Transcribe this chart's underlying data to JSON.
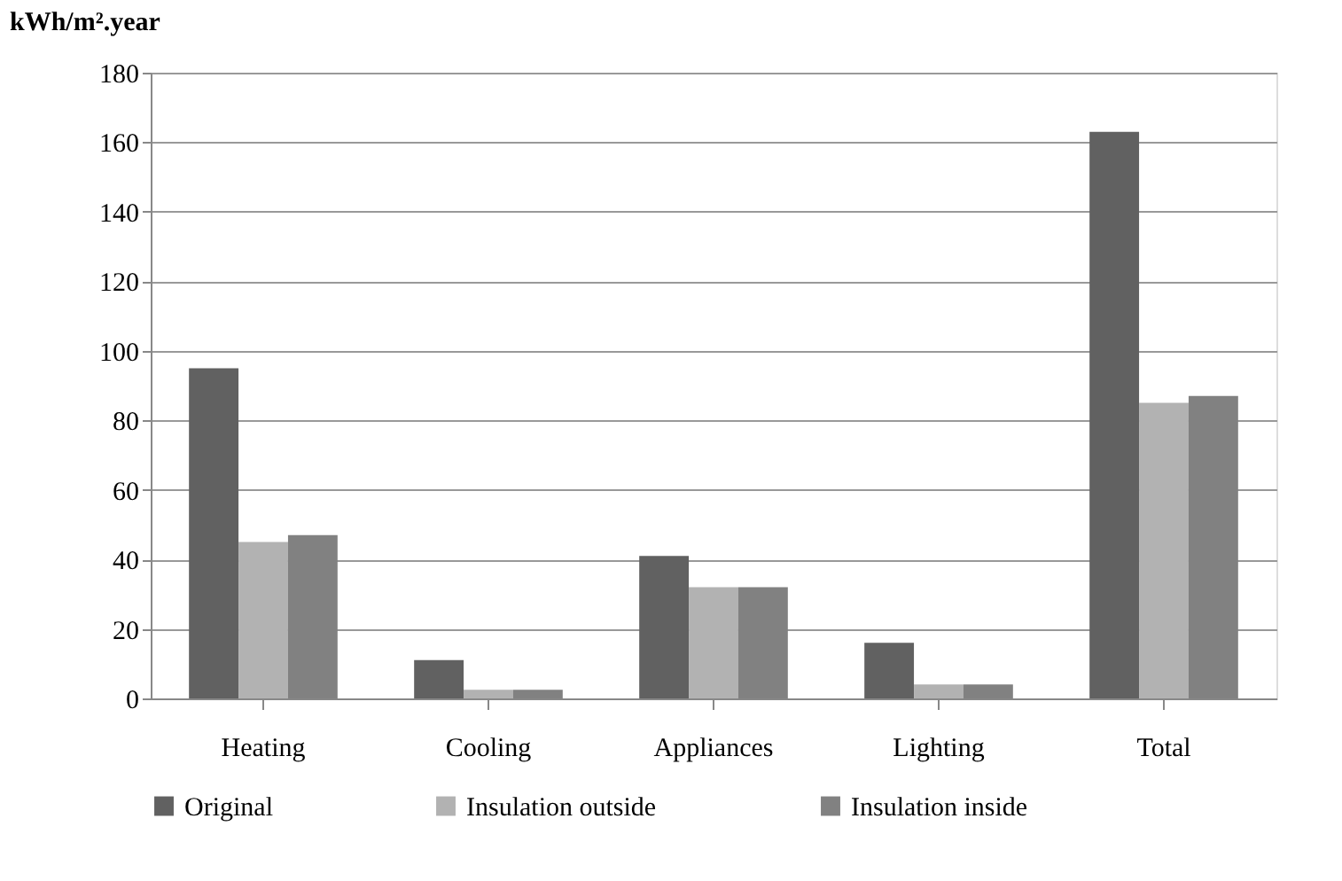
{
  "chart_data": {
    "type": "bar",
    "ylabel": "kWh/m².year",
    "categories": [
      "Heating",
      "Cooling",
      "Appliances",
      "Lighting",
      "Total"
    ],
    "series": [
      {
        "name": "Original",
        "color": "#616161",
        "values": [
          95,
          11,
          41,
          16,
          163
        ]
      },
      {
        "name": "Insulation outside",
        "color": "#b2b2b2",
        "values": [
          45,
          2.5,
          32,
          4,
          85
        ]
      },
      {
        "name": "Insulation inside",
        "color": "#818181",
        "values": [
          47,
          2.5,
          32,
          4,
          87
        ]
      }
    ],
    "ylim": [
      0,
      180
    ],
    "yticks": [
      0,
      20,
      40,
      60,
      80,
      100,
      120,
      140,
      160,
      180
    ],
    "grid": "y",
    "legend": "bottom"
  }
}
